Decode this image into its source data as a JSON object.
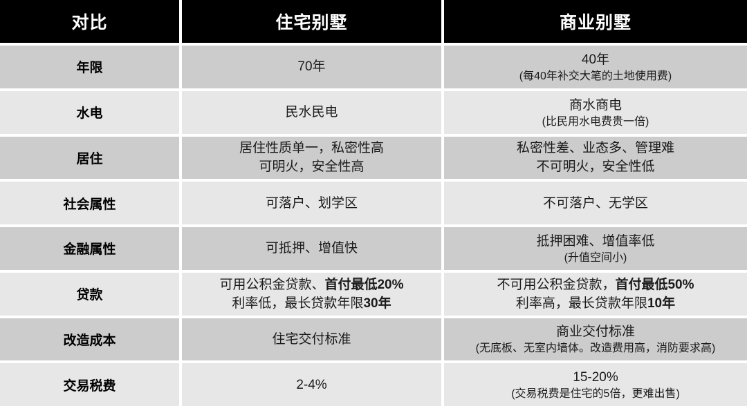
{
  "table": {
    "header": {
      "compare": "对比",
      "residential": "住宅别墅",
      "commercial": "商业别墅"
    },
    "rows": [
      {
        "label": "年限",
        "res_line1": "70年",
        "com_line1": "40年",
        "com_note": "(每40年补交大笔的土地使用费)"
      },
      {
        "label": "水电",
        "res_line1": "民水民电",
        "com_line1": "商水商电",
        "com_note": "(比民用水电费贵一倍)"
      },
      {
        "label": "居住",
        "res_line1": "居住性质单一，私密性高",
        "res_line2": "可明火，安全性高",
        "com_line1": "私密性差、业态多、管理难",
        "com_line2": "不可明火，安全性低"
      },
      {
        "label": "社会属性",
        "res_line1": "可落户、划学区",
        "com_line1": "不可落户、无学区"
      },
      {
        "label": "金融属性",
        "res_line1": "可抵押、增值快",
        "com_line1": "抵押困难、增值率低",
        "com_note": "(升值空间小)"
      },
      {
        "label": "贷款",
        "res_l1_normal": "可用公积金贷款、",
        "res_l1_bold": "首付最低20%",
        "res_l2_normal": "利率低，最长贷款年限",
        "res_l2_bold": "30年",
        "com_l1_normal": "不可用公积金贷款，",
        "com_l1_bold": "首付最低50%",
        "com_l2_normal": "利率高，最长贷款年限",
        "com_l2_bold": "10年"
      },
      {
        "label": "改造成本",
        "res_line1": "住宅交付标准",
        "com_line1": "商业交付标准",
        "com_note": "(无底板、无室内墙体。改造费用高，消防要求高)"
      },
      {
        "label": "交易税费",
        "res_line1": "2-4%",
        "com_line1": "15-20%",
        "com_note": "(交易税费是住宅的5倍，更难出售)"
      }
    ],
    "colors": {
      "header_bg": "#000000",
      "header_text": "#ffffff",
      "row_odd_bg": "#cccccc",
      "row_even_bg": "#e7e7e7",
      "gap": "#ffffff",
      "text": "#1a1a1a"
    }
  }
}
